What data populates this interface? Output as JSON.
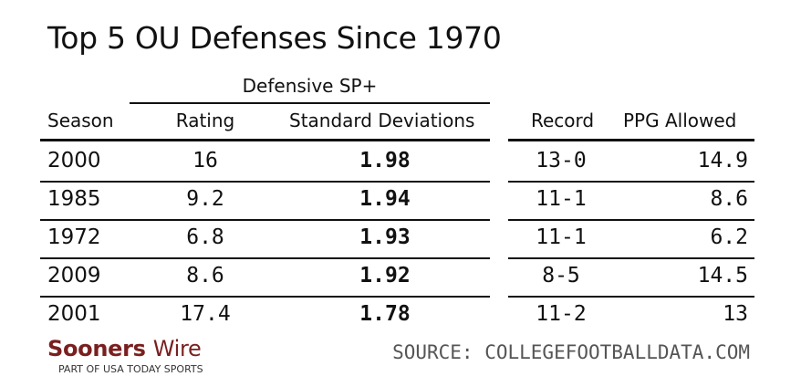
{
  "title": "Top 5 OU Defenses Since 1970",
  "group_header": "Defensive SP+",
  "columns": {
    "season": "Season",
    "rating": "Rating",
    "sd": "Standard Deviations",
    "record": "Record",
    "ppg": "PPG Allowed"
  },
  "rows": [
    {
      "season": "2000",
      "rating": "16",
      "sd": "1.98",
      "record": "13-0",
      "ppg": "14.9"
    },
    {
      "season": "1985",
      "rating": "9.2",
      "sd": "1.94",
      "record": "11-1",
      "ppg": "8.6"
    },
    {
      "season": "1972",
      "rating": "6.8",
      "sd": "1.93",
      "record": "11-1",
      "ppg": "6.2"
    },
    {
      "season": "2009",
      "rating": "8.6",
      "sd": "1.92",
      "record": "8-5",
      "ppg": "14.5"
    },
    {
      "season": "2001",
      "rating": "17.4",
      "sd": "1.78",
      "record": "11-2",
      "ppg": "13"
    }
  ],
  "logo": {
    "brand": "Sooners",
    "brand2": "Wire",
    "tagline": "PART OF USA TODAY SPORTS",
    "color": "#7a1f1f"
  },
  "source": "SOURCE: COLLEGEFOOTBALLDATA.COM"
}
